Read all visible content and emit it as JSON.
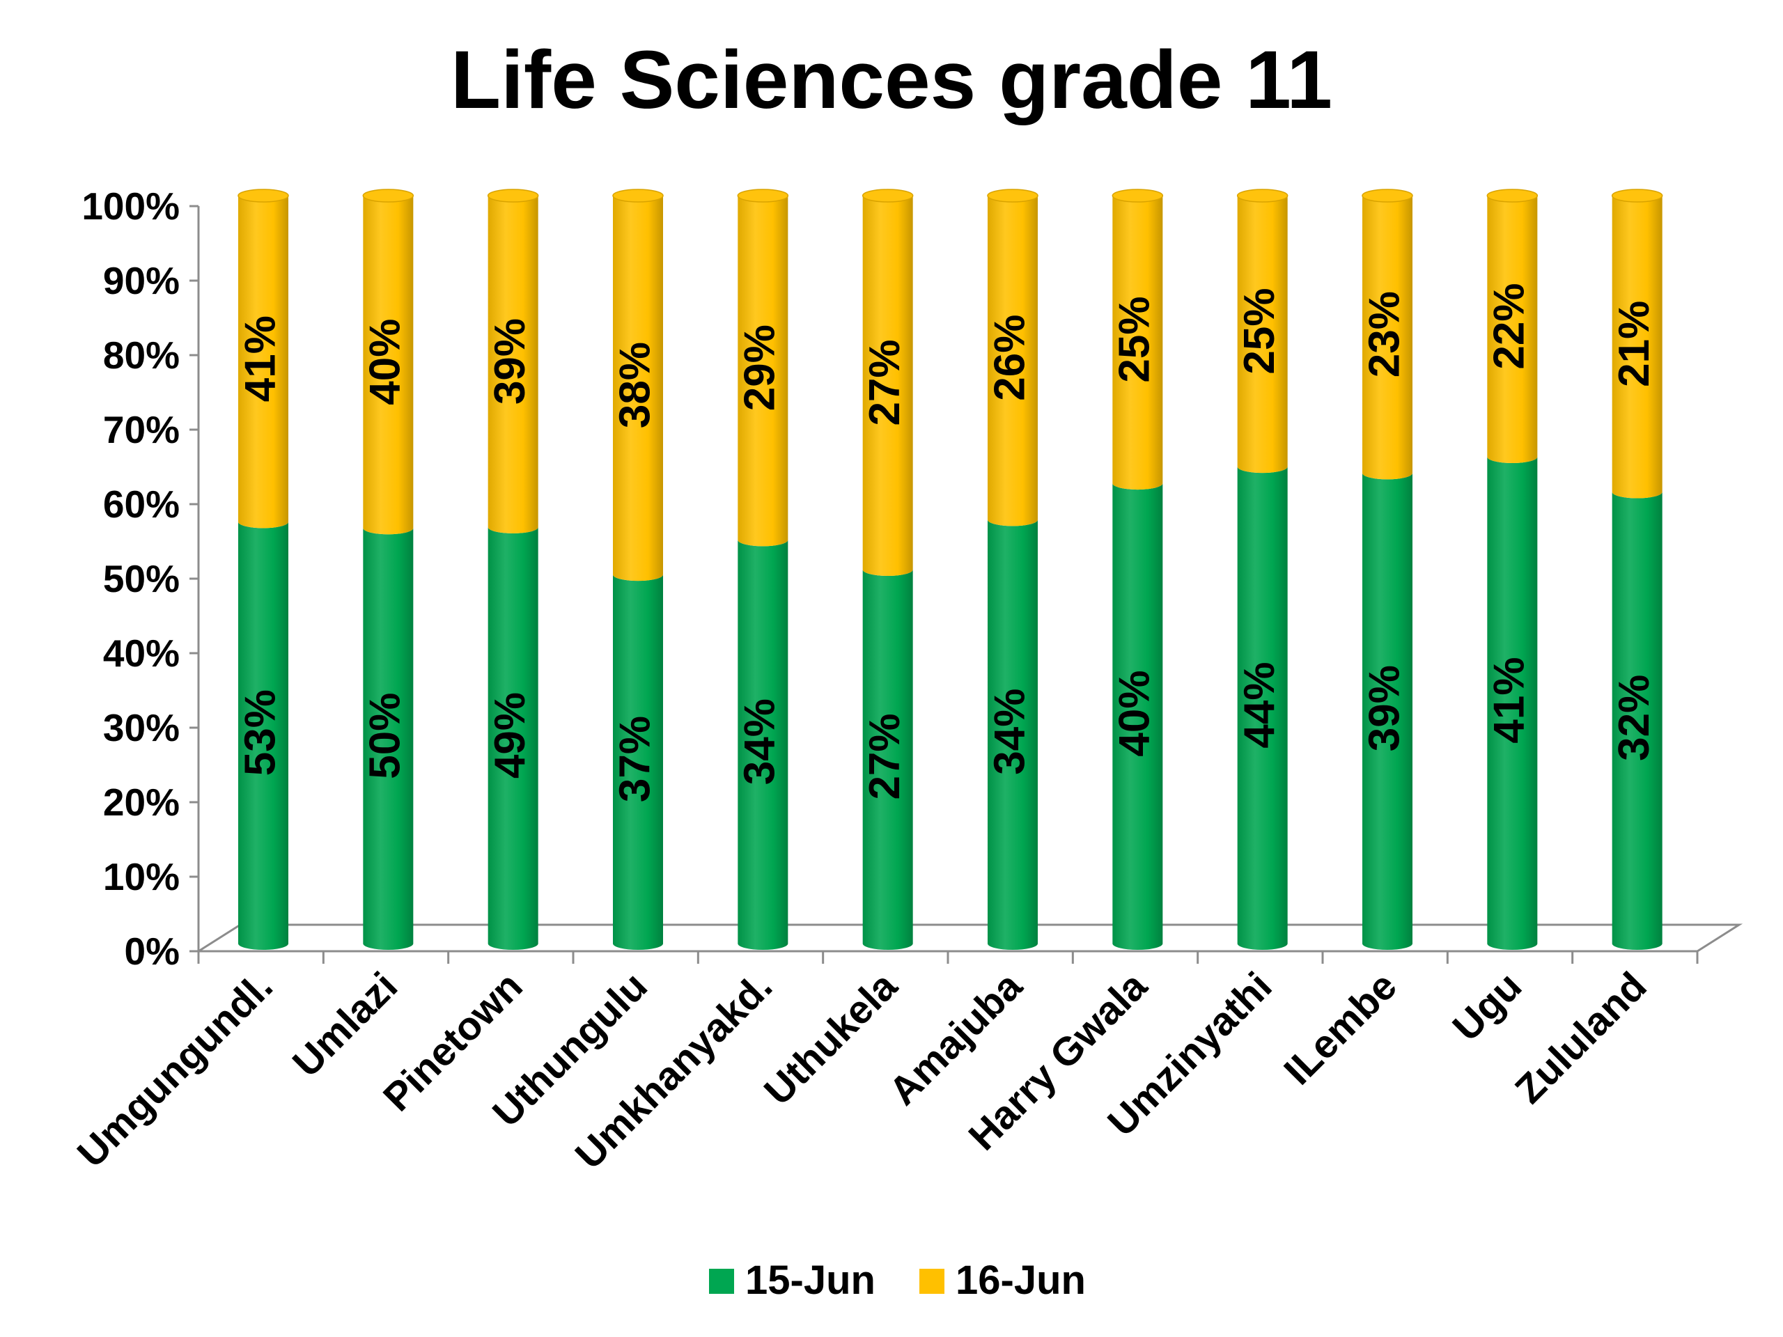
{
  "chart_data": {
    "type": "bar",
    "stacked": "percent",
    "title": "Life Sciences grade 11",
    "categories": [
      "Umgungundl.",
      "Umlazi",
      "Pinetown",
      "Uthungulu",
      "Umkhanyakd.",
      "Uthukela",
      "Amajuba",
      "Harry Gwala",
      "Umzinyathi",
      "ILembe",
      "Ugu",
      "Zululand"
    ],
    "series": [
      {
        "name": "15-Jun",
        "color": "#00A651",
        "values": [
          53,
          50,
          49,
          37,
          34,
          27,
          34,
          40,
          44,
          39,
          41,
          32
        ],
        "labels": [
          "53%",
          "50%",
          "49%",
          "37%",
          "34%",
          "27%",
          "34%",
          "40%",
          "44%",
          "39%",
          "41%",
          "32%"
        ]
      },
      {
        "name": "16-Jun",
        "color": "#FFC000",
        "values": [
          41,
          40,
          39,
          38,
          29,
          27,
          26,
          25,
          25,
          23,
          22,
          21
        ],
        "labels": [
          "41%",
          "40%",
          "39%",
          "38%",
          "29%",
          "27%",
          "26%",
          "25%",
          "25%",
          "23%",
          "22%",
          "21%"
        ]
      }
    ],
    "ylim": [
      0,
      100
    ],
    "yticks": [
      "0%",
      "10%",
      "20%",
      "30%",
      "40%",
      "50%",
      "60%",
      "70%",
      "80%",
      "90%",
      "100%"
    ],
    "xlabel": "",
    "ylabel": "",
    "grid": false,
    "legend_position": "bottom",
    "style": "3d-cylinder"
  }
}
